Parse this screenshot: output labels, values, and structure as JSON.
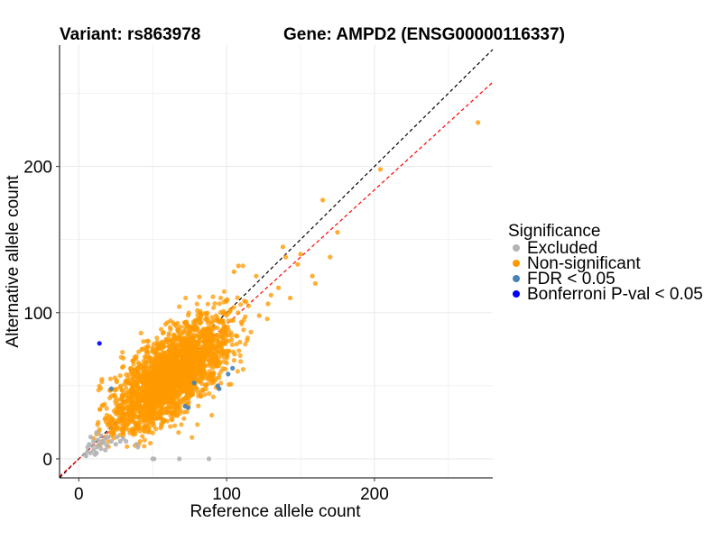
{
  "chart_data": {
    "type": "scatter",
    "title_left": "Variant: rs863978",
    "title_right": "Gene: AMPD2 (ENSG00000116337)",
    "xlabel": "Reference allele count",
    "ylabel": "Alternative allele count",
    "xlim": [
      -13,
      280
    ],
    "ylim": [
      -13,
      283
    ],
    "x_ticks": [
      0,
      100,
      200
    ],
    "y_ticks": [
      0,
      100,
      200
    ],
    "grid": true,
    "legend": {
      "title": "Significance",
      "placement": "right",
      "entries": [
        {
          "label": "Excluded",
          "color": "#b3b3b3"
        },
        {
          "label": "Non-significant",
          "color": "#ff9900"
        },
        {
          "label": "FDR < 0.05",
          "color": "#4682b4"
        },
        {
          "label": "Bonferroni P-val < 0.05",
          "color": "#0000ff"
        }
      ]
    },
    "reference_lines": [
      {
        "name": "identity",
        "slope": 1.0,
        "intercept": 0,
        "color": "#000000",
        "dash": true
      },
      {
        "name": "fit",
        "slope": 0.92,
        "intercept": 0,
        "color": "#ff0000",
        "dash": true
      }
    ],
    "series": [
      {
        "group": "Excluded",
        "color": "#b3b3b3",
        "points": [
          [
            5,
            2
          ],
          [
            8,
            4
          ],
          [
            10,
            6
          ],
          [
            12,
            8
          ],
          [
            14,
            10
          ],
          [
            16,
            12
          ],
          [
            18,
            14
          ],
          [
            20,
            15
          ],
          [
            6,
            5
          ],
          [
            9,
            9
          ],
          [
            11,
            3
          ],
          [
            13,
            13
          ],
          [
            15,
            7
          ],
          [
            7,
            10
          ],
          [
            17,
            11
          ],
          [
            19,
            9
          ],
          [
            10,
            12
          ],
          [
            12,
            4
          ],
          [
            22,
            12
          ],
          [
            25,
            10
          ],
          [
            28,
            12
          ],
          [
            18,
            6
          ],
          [
            12,
            18
          ],
          [
            8,
            15
          ],
          [
            15,
            16
          ],
          [
            32,
            12
          ],
          [
            40,
            8
          ],
          [
            50,
            0
          ],
          [
            51,
            0
          ],
          [
            68,
            0
          ],
          [
            88,
            0
          ],
          [
            39,
            10
          ],
          [
            30,
            14
          ],
          [
            26,
            15
          ],
          [
            6,
            8
          ],
          [
            4,
            3
          ]
        ]
      },
      {
        "group": "Non-significant",
        "color": "#ff9900",
        "generator": {
          "count": 2500,
          "center": [
            62,
            57
          ],
          "spread_along": 25,
          "spread_across": 11
        },
        "points": [
          [
            270,
            230
          ],
          [
            204,
            198
          ],
          [
            165,
            177
          ],
          [
            175,
            155
          ],
          [
            140,
            138
          ],
          [
            150,
            140
          ],
          [
            160,
            120
          ],
          [
            170,
            138
          ],
          [
            135,
            117
          ],
          [
            120,
            125
          ],
          [
            108,
            132
          ],
          [
            105,
            128
          ],
          [
            128,
            106
          ],
          [
            143,
            110
          ],
          [
            158,
            125
          ],
          [
            148,
            133
          ],
          [
            138,
            145
          ],
          [
            130,
            112
          ],
          [
            122,
            98
          ],
          [
            112,
            108
          ],
          [
            14,
            20
          ],
          [
            12,
            17
          ],
          [
            20,
            24
          ],
          [
            18,
            15
          ],
          [
            24,
            20
          ],
          [
            28,
            26
          ],
          [
            10,
            14
          ],
          [
            16,
            12
          ],
          [
            22,
            18
          ],
          [
            26,
            22
          ]
        ]
      },
      {
        "group": "FDR < 0.05",
        "color": "#4682b4",
        "points": [
          [
            22,
            48
          ],
          [
            72,
            36
          ],
          [
            74,
            35
          ],
          [
            78,
            52
          ],
          [
            94,
            50
          ],
          [
            95,
            48
          ],
          [
            101,
            58
          ],
          [
            104,
            62
          ]
        ]
      },
      {
        "group": "Bonferroni P-val < 0.05",
        "color": "#0000ff",
        "points": [
          [
            14,
            79
          ]
        ]
      }
    ]
  }
}
